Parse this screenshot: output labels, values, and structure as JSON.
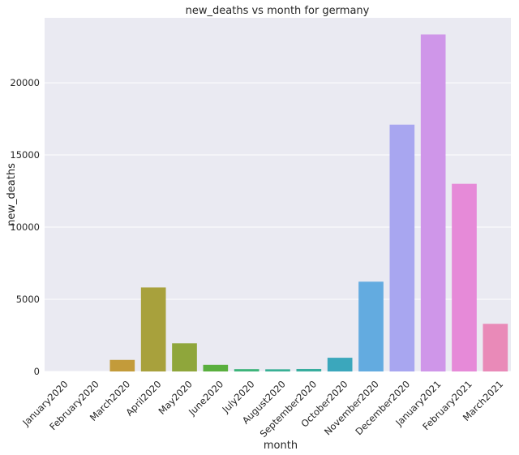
{
  "chart_data": {
    "type": "bar",
    "title": "new_deaths vs month  for germany",
    "xlabel": "month",
    "ylabel": "new_deaths",
    "categories": [
      "January2020",
      "February2020",
      "March2020",
      "April2020",
      "May2020",
      "June2020",
      "July2020",
      "August2020",
      "September2020",
      "October2020",
      "November2020",
      "December2020",
      "January2021",
      "February2021",
      "March2021"
    ],
    "values": [
      0,
      0,
      800,
      5820,
      1950,
      460,
      160,
      150,
      170,
      950,
      6220,
      17100,
      23350,
      13000,
      3300
    ],
    "colors": [
      "#e8827a",
      "#df8f44",
      "#c39b3a",
      "#a8a13c",
      "#8fa63b",
      "#5aaf3e",
      "#3db47a",
      "#39b095",
      "#38ad9e",
      "#3ba7bc",
      "#63abe0",
      "#a8a6f0",
      "#cf96e9",
      "#e68ad8",
      "#e98ab8"
    ],
    "yticks": [
      0,
      5000,
      10000,
      15000,
      20000
    ],
    "ylim": [
      0,
      24500
    ],
    "grid": true,
    "legend": "none"
  }
}
